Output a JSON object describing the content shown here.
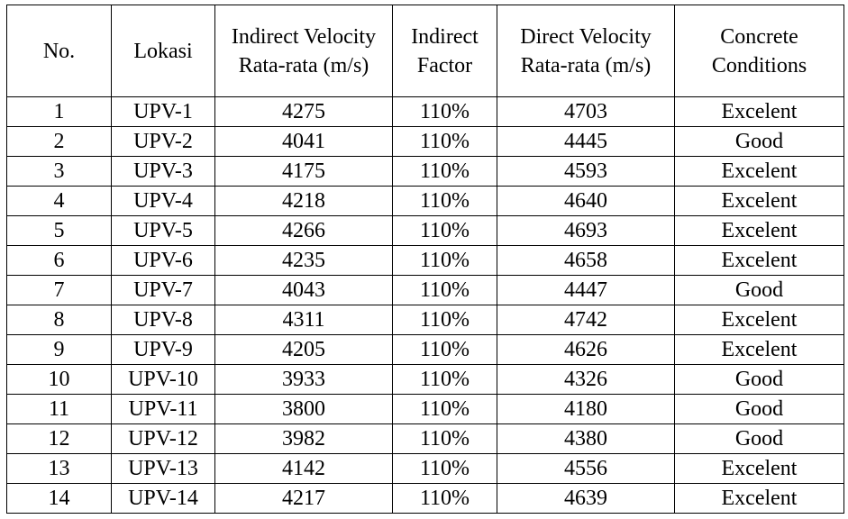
{
  "table": {
    "headers": [
      {
        "lines": [
          "No."
        ]
      },
      {
        "lines": [
          "Lokasi"
        ]
      },
      {
        "lines": [
          "Indirect Velocity",
          "Rata-rata (m/s)"
        ]
      },
      {
        "lines": [
          "Indirect",
          "Factor"
        ]
      },
      {
        "lines": [
          "Direct Velocity",
          "Rata-rata (m/s)"
        ]
      },
      {
        "lines": [
          "Concrete",
          "Conditions"
        ]
      }
    ],
    "rows": [
      [
        "1",
        "UPV-1",
        "4275",
        "110%",
        "4703",
        "Excelent"
      ],
      [
        "2",
        "UPV-2",
        "4041",
        "110%",
        "4445",
        "Good"
      ],
      [
        "3",
        "UPV-3",
        "4175",
        "110%",
        "4593",
        "Excelent"
      ],
      [
        "4",
        "UPV-4",
        "4218",
        "110%",
        "4640",
        "Excelent"
      ],
      [
        "5",
        "UPV-5",
        "4266",
        "110%",
        "4693",
        "Excelent"
      ],
      [
        "6",
        "UPV-6",
        "4235",
        "110%",
        "4658",
        "Excelent"
      ],
      [
        "7",
        "UPV-7",
        "4043",
        "110%",
        "4447",
        "Good"
      ],
      [
        "8",
        "UPV-8",
        "4311",
        "110%",
        "4742",
        "Excelent"
      ],
      [
        "9",
        "UPV-9",
        "4205",
        "110%",
        "4626",
        "Excelent"
      ],
      [
        "10",
        "UPV-10",
        "3933",
        "110%",
        "4326",
        "Good"
      ],
      [
        "11",
        "UPV-11",
        "3800",
        "110%",
        "4180",
        "Good"
      ],
      [
        "12",
        "UPV-12",
        "3982",
        "110%",
        "4380",
        "Good"
      ],
      [
        "13",
        "UPV-13",
        "4142",
        "110%",
        "4556",
        "Excelent"
      ],
      [
        "14",
        "UPV-14",
        "4217",
        "110%",
        "4639",
        "Excelent"
      ]
    ]
  }
}
